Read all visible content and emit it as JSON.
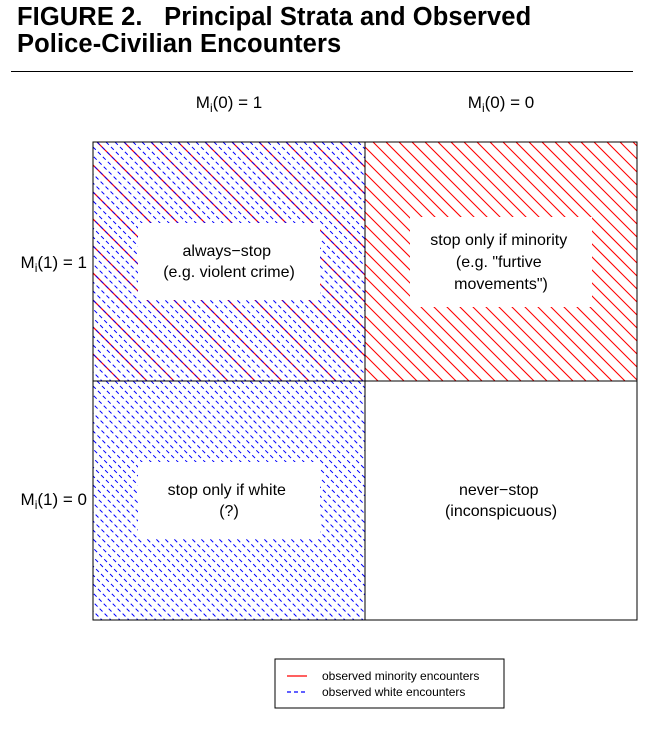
{
  "title": {
    "line1": "FIGURE 2.   Principal Strata and Observed",
    "line2": "Police-Civilian Encounters"
  },
  "columns": [
    {
      "base": "M",
      "sub": "i",
      "rest": "(0) = 1"
    },
    {
      "base": "M",
      "sub": "i",
      "rest": "(0) = 0"
    }
  ],
  "rows": [
    {
      "base": "M",
      "sub": "i",
      "rest": "(1) = 1"
    },
    {
      "base": "M",
      "sub": "i",
      "rest": "(1) = 0"
    }
  ],
  "cells": {
    "top_left": [
      "always−stop",
      "(e.g. violent crime)"
    ],
    "top_right": [
      "stop only if minority",
      "(e.g. \"furtive",
      "movements\")"
    ],
    "bottom_left": [
      "stop only if white",
      "(?)"
    ],
    "bottom_right": [
      "never−stop",
      "(inconspicuous)"
    ]
  },
  "legend": {
    "minority": "observed minority encounters",
    "white": "observed white encounters"
  },
  "colors": {
    "minority": "#ff0000",
    "white": "#0000ff",
    "border": "#000000"
  }
}
